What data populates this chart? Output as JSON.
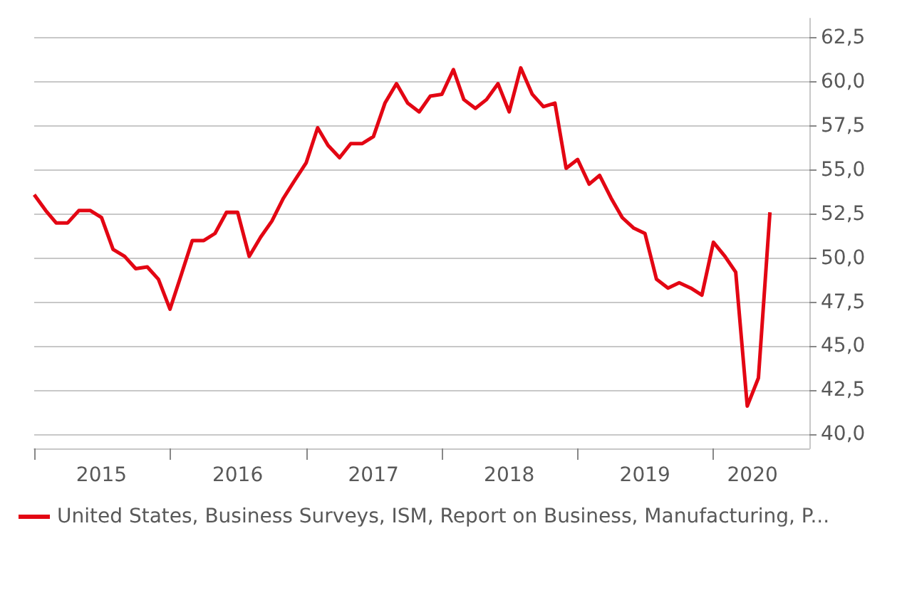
{
  "chart_data": {
    "type": "line",
    "x": [
      "2015-01",
      "2015-02",
      "2015-03",
      "2015-04",
      "2015-05",
      "2015-06",
      "2015-07",
      "2015-08",
      "2015-09",
      "2015-10",
      "2015-11",
      "2015-12",
      "2016-01",
      "2016-02",
      "2016-03",
      "2016-04",
      "2016-05",
      "2016-06",
      "2016-07",
      "2016-08",
      "2016-09",
      "2016-10",
      "2016-11",
      "2016-12",
      "2017-01",
      "2017-02",
      "2017-03",
      "2017-04",
      "2017-05",
      "2017-06",
      "2017-07",
      "2017-08",
      "2017-09",
      "2017-10",
      "2017-11",
      "2017-12",
      "2018-01",
      "2018-02",
      "2018-03",
      "2018-04",
      "2018-05",
      "2018-06",
      "2018-07",
      "2018-08",
      "2018-09",
      "2018-10",
      "2018-11",
      "2018-12",
      "2019-01",
      "2019-02",
      "2019-03",
      "2019-04",
      "2019-05",
      "2019-06",
      "2019-07",
      "2019-08",
      "2019-09",
      "2019-10",
      "2019-11",
      "2019-12",
      "2020-01",
      "2020-02",
      "2020-03",
      "2020-04",
      "2020-05",
      "2020-06"
    ],
    "series": [
      {
        "name": "United States, Business Surveys, ISM, Report on Business, Manufacturing, P...",
        "color": "#e30613",
        "values": [
          53.6,
          52.7,
          52.0,
          52.0,
          52.7,
          52.7,
          52.3,
          50.5,
          50.1,
          49.4,
          49.5,
          48.8,
          47.1,
          49.1,
          51.0,
          51.0,
          51.4,
          52.6,
          52.6,
          50.1,
          51.2,
          52.1,
          53.4,
          54.4,
          55.4,
          57.4,
          56.4,
          55.7,
          56.5,
          56.5,
          56.9,
          58.8,
          59.9,
          58.8,
          58.3,
          59.2,
          59.3,
          60.7,
          59.0,
          58.5,
          59.0,
          59.9,
          58.3,
          60.8,
          59.3,
          58.6,
          58.8,
          55.1,
          55.6,
          54.2,
          54.7,
          53.4,
          52.3,
          51.7,
          51.4,
          48.8,
          48.3,
          48.6,
          48.3,
          47.9,
          50.9,
          50.1,
          49.2,
          41.6,
          43.2,
          52.6
        ]
      }
    ],
    "xlim": [
      "2015-01-01",
      "2020-09-15"
    ],
    "xticks": [
      {
        "value": "2015-01-01",
        "label": null
      },
      {
        "value": "2015-07-01",
        "label": "2015"
      },
      {
        "value": "2016-01-01",
        "label": null
      },
      {
        "value": "2016-07-01",
        "label": "2016"
      },
      {
        "value": "2017-01-01",
        "label": null
      },
      {
        "value": "2017-07-01",
        "label": "2017"
      },
      {
        "value": "2018-01-01",
        "label": null
      },
      {
        "value": "2018-07-01",
        "label": "2018"
      },
      {
        "value": "2019-01-01",
        "label": null
      },
      {
        "value": "2019-07-01",
        "label": "2019"
      },
      {
        "value": "2020-01-01",
        "label": null
      },
      {
        "value": "2020-04-15",
        "label": "2020"
      }
    ],
    "ylim": [
      39.2,
      63.6
    ],
    "yticks": [
      {
        "value": 40,
        "label": "40,0"
      },
      {
        "value": 42.5,
        "label": "42,5"
      },
      {
        "value": 45,
        "label": "45,0"
      },
      {
        "value": 47.5,
        "label": "47,5"
      },
      {
        "value": 50,
        "label": "50,0"
      },
      {
        "value": 52.5,
        "label": "52,5"
      },
      {
        "value": 55,
        "label": "55,0"
      },
      {
        "value": 57.5,
        "label": "57,5"
      },
      {
        "value": 60,
        "label": "60,0"
      },
      {
        "value": 62.5,
        "label": "62,5"
      }
    ],
    "grid": "y",
    "legend": "bottom left",
    "marker": "none",
    "line_style": "solid"
  }
}
